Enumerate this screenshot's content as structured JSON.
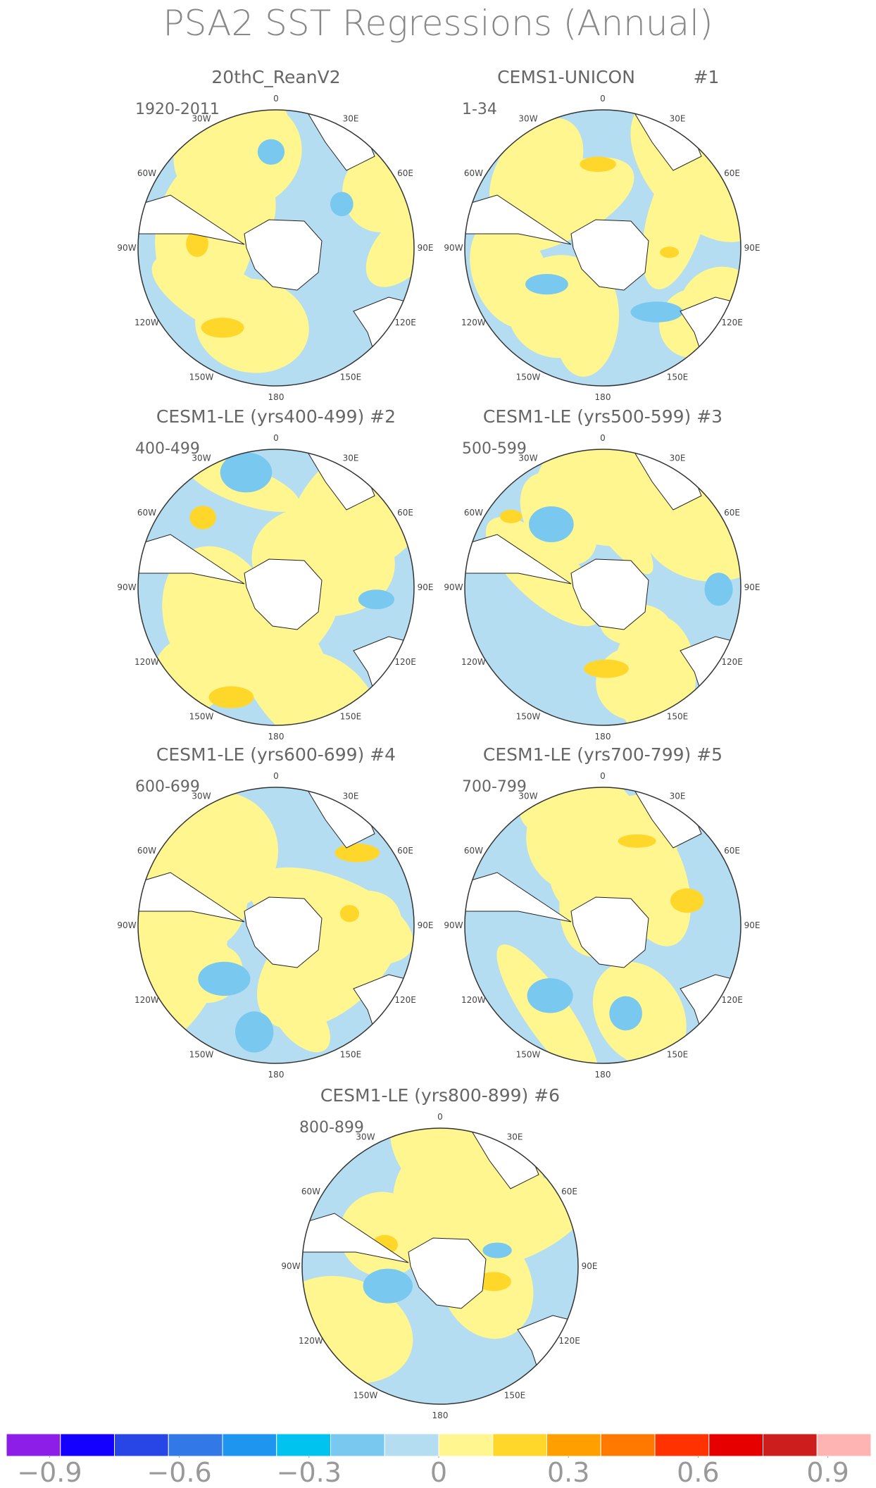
{
  "title": "PSA2 SST Regressions (Annual)",
  "longitude_labels": [
    "0",
    "30E",
    "60E",
    "90E",
    "120E",
    "150E",
    "180",
    "150W",
    "120W",
    "90W",
    "60W",
    "30W"
  ],
  "panels": [
    {
      "title": "20thC_ReanV2",
      "period": "1920-2011"
    },
    {
      "title": "CEMS1-UNICON",
      "number": "#1",
      "period": "1-34"
    },
    {
      "title": "CESM1-LE (yrs400-499) #2",
      "period": "400-499"
    },
    {
      "title": "CESM1-LE (yrs500-599) #3",
      "period": "500-599"
    },
    {
      "title": "CESM1-LE (yrs600-699) #4",
      "period": "600-699"
    },
    {
      "title": "CESM1-LE (yrs700-799) #5",
      "period": "700-799"
    },
    {
      "title": "CESM1-LE (yrs800-899) #6",
      "period": "800-899"
    }
  ],
  "colorbar": {
    "colors": [
      "#8c1ee8",
      "#1400ff",
      "#2846e6",
      "#3278e6",
      "#1e96f0",
      "#00c3f0",
      "#78c8f0",
      "#b4ddf2",
      "#fff68f",
      "#ffd72a",
      "#ffa000",
      "#ff7800",
      "#ff3200",
      "#e60000",
      "#cd1e1e",
      "#ffb4b4"
    ],
    "lim": [
      -1,
      1
    ],
    "ticks": [
      {
        "value": -0.9,
        "label": "−0.9"
      },
      {
        "value": -0.6,
        "label": "−0.6"
      },
      {
        "value": -0.3,
        "label": "−0.3"
      },
      0,
      0.3,
      0.6,
      0.9
    ]
  }
}
